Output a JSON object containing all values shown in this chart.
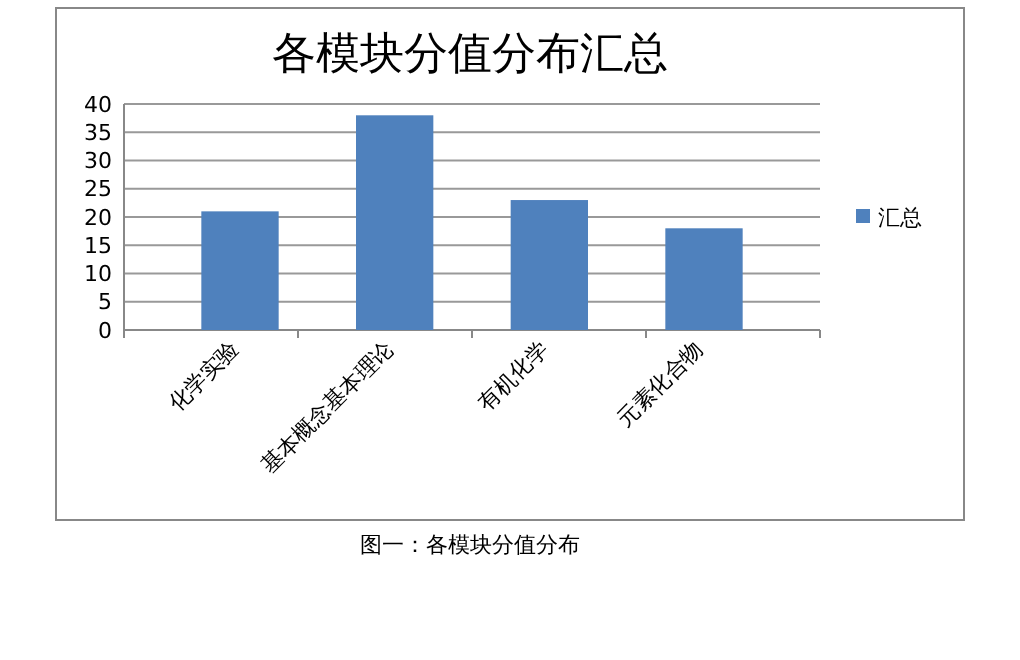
{
  "chart_data": {
    "type": "bar",
    "title": "各模块分值分布汇总",
    "categories": [
      "化学实验",
      "基本概念基本理论",
      "有机化学",
      "元素化合物"
    ],
    "series": [
      {
        "name": "汇总",
        "color": "#4f81bd",
        "values": [
          21,
          38,
          23,
          18
        ]
      }
    ],
    "ylim": [
      0,
      40
    ],
    "yticks": [
      0,
      5,
      10,
      15,
      20,
      25,
      30,
      35,
      40
    ],
    "grid": "y",
    "legend": "right",
    "annotations": [
      "图一：各模块分值分布"
    ]
  }
}
